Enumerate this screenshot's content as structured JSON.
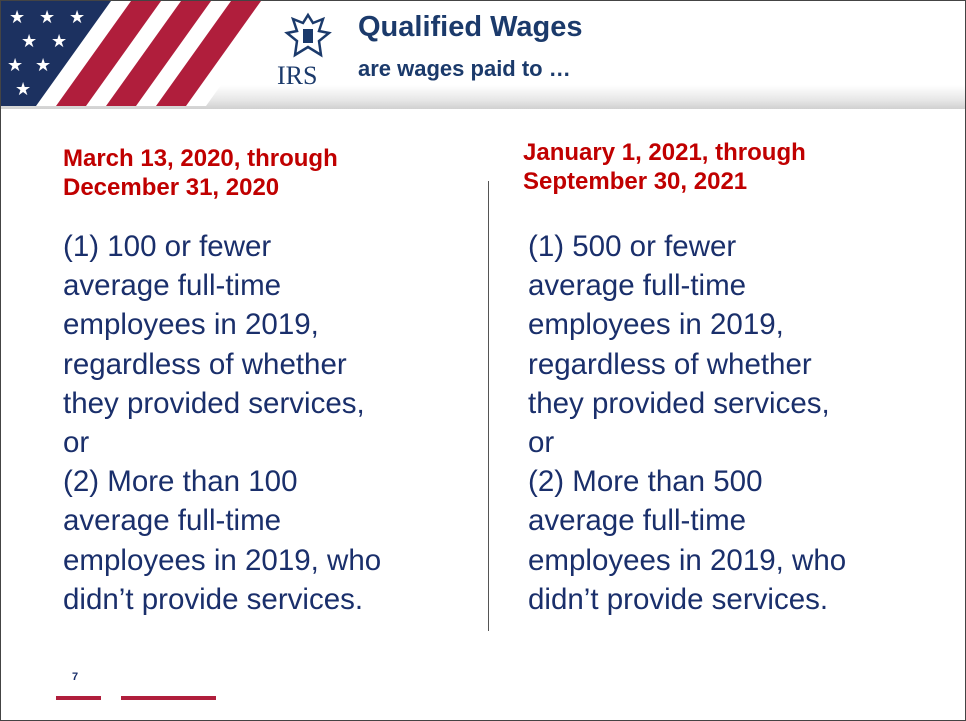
{
  "header": {
    "logo": "IRS",
    "title": "Qualified Wages",
    "subtitle": "are wages paid to …"
  },
  "columns": [
    {
      "heading": [
        "March 13, 2020, through",
        "December 31, 2020"
      ],
      "lines": [
        "(1) 100 or fewer",
        "average full-time",
        "employees in 2019,",
        "regardless of whether",
        "they provided services,",
        "or",
        "(2) More than 100",
        "average full-time",
        "employees in 2019, who",
        "didn’t provide services."
      ]
    },
    {
      "heading": [
        "January 1, 2021, through",
        "September 30, 2021"
      ],
      "lines": [
        "(1) 500 or fewer",
        "average full-time",
        "employees in 2019,",
        "regardless of whether",
        "they provided services,",
        "or",
        "(2) More than 500",
        "average full-time",
        "employees in 2019, who",
        "didn’t provide services."
      ]
    }
  ],
  "page_number": "7"
}
